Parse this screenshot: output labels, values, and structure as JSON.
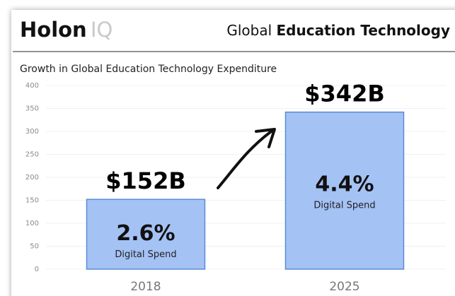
{
  "header": {
    "logo_main": "Holon",
    "logo_accent": "IQ",
    "title_light": "Global",
    "title_bold": "Education Technology"
  },
  "chart_data": {
    "type": "bar",
    "title": "Growth in Global Education Technology Expenditure",
    "categories": [
      "2018",
      "2025"
    ],
    "values": [
      152,
      342
    ],
    "value_labels": [
      "$152B",
      "$342B"
    ],
    "bar_notes": [
      "2.6%",
      "4.4%"
    ],
    "bar_note_label": "Digital Spend",
    "color": "#a4c2f4",
    "ylim": [
      0,
      400
    ],
    "yticks": [
      0,
      50,
      100,
      150,
      200,
      250,
      300,
      350,
      400
    ],
    "grid": true
  }
}
